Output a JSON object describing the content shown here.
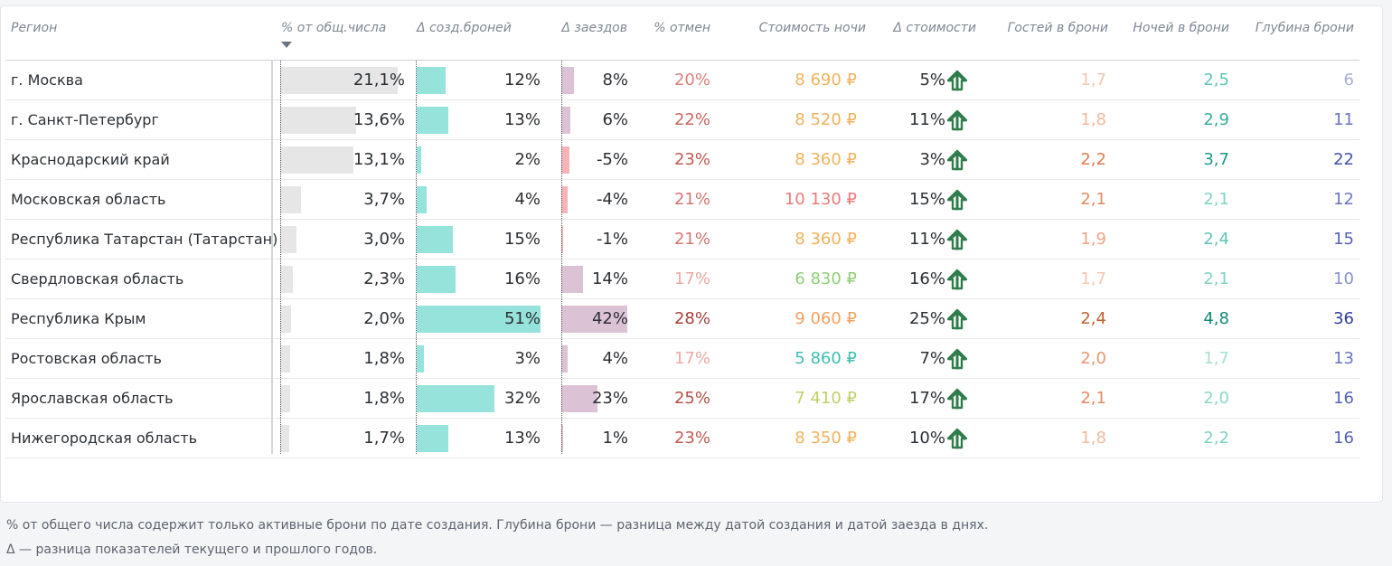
{
  "table": {
    "headers": {
      "region": "Регион",
      "pct_total": "% от общ.числа",
      "d_created": "Δ созд.броней",
      "d_checkins": "Δ заездов",
      "pct_cancel": "% отмен",
      "night_cost": "Стоимость ночи",
      "d_cost": "Δ стоимости",
      "guests": "Гостей в брони",
      "nights": "Ночей в брони",
      "depth": "Глубина брони"
    },
    "rows": [
      {
        "region": "г. Москва",
        "pct_total": "21,1%",
        "pct_total_val": 21.1,
        "d_created": "12%",
        "d_created_val": 12,
        "d_checkins": "8%",
        "d_checkins_val": 8,
        "pct_cancel": "20%",
        "cancel_color": "#d9807a",
        "night_cost": "8 690 ₽",
        "cost_color": "#f2b25c",
        "d_cost": "5%",
        "guests": "1,7",
        "guests_color": "#f6c6b0",
        "nights": "2,5",
        "nights_color": "#5cc6b4",
        "depth": "6",
        "depth_color": "#a8acd8"
      },
      {
        "region": "г. Санкт-Петербург",
        "pct_total": "13,6%",
        "pct_total_val": 13.6,
        "d_created": "13%",
        "d_created_val": 13,
        "d_checkins": "6%",
        "d_checkins_val": 6,
        "pct_cancel": "22%",
        "cancel_color": "#c9655f",
        "night_cost": "8 520 ₽",
        "cost_color": "#f2b25c",
        "d_cost": "11%",
        "guests": "1,8",
        "guests_color": "#f2b89c",
        "nights": "2,9",
        "nights_color": "#34ad99",
        "depth": "11",
        "depth_color": "#6c74c4"
      },
      {
        "region": "Краснодарский край",
        "pct_total": "13,1%",
        "pct_total_val": 13.1,
        "d_created": "2%",
        "d_created_val": 2,
        "d_checkins": "-5%",
        "d_checkins_val": -5,
        "pct_cancel": "23%",
        "cancel_color": "#c25a54",
        "night_cost": "8 360 ₽",
        "cost_color": "#f2b25c",
        "d_cost": "3%",
        "guests": "2,2",
        "guests_color": "#e07a4e",
        "nights": "3,7",
        "nights_color": "#1f9a86",
        "depth": "22",
        "depth_color": "#4650b0"
      },
      {
        "region": "Московская область",
        "pct_total": "3,7%",
        "pct_total_val": 3.7,
        "d_created": "4%",
        "d_created_val": 4,
        "d_checkins": "-4%",
        "d_checkins_val": -4,
        "pct_cancel": "21%",
        "cancel_color": "#d27570",
        "night_cost": "10 130 ₽",
        "cost_color": "#f07a7a",
        "d_cost": "15%",
        "guests": "2,1",
        "guests_color": "#e58a62",
        "nights": "2,1",
        "nights_color": "#7fd3c5",
        "depth": "12",
        "depth_color": "#6c74c4"
      },
      {
        "region": "Республика Татарстан (Татарстан)",
        "pct_total": "3,0%",
        "pct_total_val": 3.0,
        "d_created": "15%",
        "d_created_val": 15,
        "d_checkins": "-1%",
        "d_checkins_val": -1,
        "pct_cancel": "21%",
        "cancel_color": "#d27570",
        "night_cost": "8 360 ₽",
        "cost_color": "#f2b25c",
        "d_cost": "11%",
        "guests": "1,9",
        "guests_color": "#eea382",
        "nights": "2,4",
        "nights_color": "#5cc6b4",
        "depth": "15",
        "depth_color": "#5860bb"
      },
      {
        "region": "Свердловская область",
        "pct_total": "2,3%",
        "pct_total_val": 2.3,
        "d_created": "16%",
        "d_created_val": 16,
        "d_checkins": "14%",
        "d_checkins_val": 14,
        "pct_cancel": "17%",
        "cancel_color": "#eba8a3",
        "night_cost": "6 830 ₽",
        "cost_color": "#8fcf78",
        "d_cost": "16%",
        "guests": "1,7",
        "guests_color": "#f6c6b0",
        "nights": "2,1",
        "nights_color": "#7fd3c5",
        "depth": "10",
        "depth_color": "#8a90cf"
      },
      {
        "region": "Республика Крым",
        "pct_total": "2,0%",
        "pct_total_val": 2.0,
        "d_created": "51%",
        "d_created_val": 51,
        "d_checkins": "42%",
        "d_checkins_val": 42,
        "pct_cancel": "28%",
        "cancel_color": "#a8403b",
        "night_cost": "9 060 ₽",
        "cost_color": "#f4a060",
        "d_cost": "25%",
        "guests": "2,4",
        "guests_color": "#c85e30",
        "nights": "4,8",
        "nights_color": "#0e8a76",
        "depth": "36",
        "depth_color": "#323c9c"
      },
      {
        "region": "Ростовская область",
        "pct_total": "1,8%",
        "pct_total_val": 1.8,
        "d_created": "3%",
        "d_created_val": 3,
        "d_checkins": "4%",
        "d_checkins_val": 4,
        "pct_cancel": "17%",
        "cancel_color": "#eba8a3",
        "night_cost": "5 860 ₽",
        "cost_color": "#3fc0b0",
        "d_cost": "7%",
        "guests": "2,0",
        "guests_color": "#eb9670",
        "nights": "1,7",
        "nights_color": "#a6e0d6",
        "depth": "13",
        "depth_color": "#6c74c4"
      },
      {
        "region": "Ярославская область",
        "pct_total": "1,8%",
        "pct_total_val": 1.8,
        "d_created": "32%",
        "d_created_val": 32,
        "d_checkins": "23%",
        "d_checkins_val": 23,
        "pct_cancel": "25%",
        "cancel_color": "#b84e48",
        "night_cost": "7 410 ₽",
        "cost_color": "#c2cf68",
        "d_cost": "17%",
        "guests": "2,1",
        "guests_color": "#e58a62",
        "nights": "2,0",
        "nights_color": "#8ad7ca",
        "depth": "16",
        "depth_color": "#5860bb"
      },
      {
        "region": "Нижегородская область",
        "pct_total": "1,7%",
        "pct_total_val": 1.7,
        "d_created": "13%",
        "d_created_val": 13,
        "d_checkins": "1%",
        "d_checkins_val": 1,
        "pct_cancel": "23%",
        "cancel_color": "#c25a54",
        "night_cost": "8 350 ₽",
        "cost_color": "#f2b25c",
        "d_cost": "10%",
        "guests": "1,8",
        "guests_color": "#f2b89c",
        "nights": "2,2",
        "nights_color": "#7fd3c5",
        "depth": "16",
        "depth_color": "#5860bb"
      }
    ]
  },
  "colors": {
    "pct_bar": "#e6e6e6",
    "created_bar": "#96e3db",
    "checkins_pos_bar": "#dcc2d5",
    "checkins_neg_bar": "#f5b5b8",
    "arrow": "#2f7d4a"
  },
  "icons": {
    "cost_trend": "arrow-up-icon",
    "sort": "sort-desc-icon"
  },
  "footnotes": [
    "% от общего числа содержит только активные брони по дате создания.  Глубина брони — разница между датой создания и датой заезда в днях.",
    "Δ — разница показателей текущего и прошлого годов."
  ]
}
